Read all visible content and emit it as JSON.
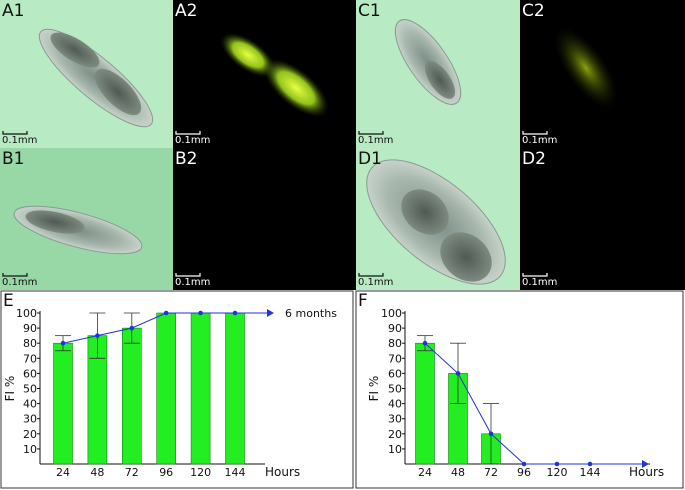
{
  "micrographs": [
    {
      "label": "A1",
      "scale": "0.1mm",
      "fluorescent": false
    },
    {
      "label": "A2",
      "scale": "0.1mm",
      "fluorescent": true
    },
    {
      "label": "C1",
      "scale": "0.1mm",
      "fluorescent": false
    },
    {
      "label": "C2",
      "scale": "0.1mm",
      "fluorescent": true
    },
    {
      "label": "B1",
      "scale": "0.1mm",
      "fluorescent": false
    },
    {
      "label": "B2",
      "scale": "0.1mm",
      "fluorescent": true
    },
    {
      "label": "D1",
      "scale": "0.1mm",
      "fluorescent": false
    },
    {
      "label": "D2",
      "scale": "0.1mm",
      "fluorescent": true
    }
  ],
  "colors": {
    "bar_fill": "#22ee22",
    "line": "#2233dd",
    "brightfield_light": "#b8eac3",
    "brightfield_dark": "#98d8a6",
    "fluorescence_bg": "#000000",
    "fluorescence_glow": "#c8ee30"
  },
  "chart_data": [
    {
      "panel": "E",
      "type": "bar",
      "categories": [
        "24",
        "48",
        "72",
        "96",
        "120",
        "144"
      ],
      "values": [
        80,
        85,
        90,
        100,
        100,
        100
      ],
      "error_low": [
        75,
        70,
        80,
        100,
        100,
        100
      ],
      "error_high": [
        85,
        100,
        100,
        100,
        100,
        100
      ],
      "ylabel": "FI %",
      "xlabel": "Hours",
      "yticks": [
        10,
        20,
        30,
        40,
        50,
        60,
        70,
        80,
        90,
        100
      ],
      "ylim": [
        0,
        100
      ],
      "annotation": "6 months",
      "grid": false
    },
    {
      "panel": "F",
      "type": "bar",
      "categories": [
        "24",
        "48",
        "72",
        "96",
        "120",
        "144"
      ],
      "values": [
        80,
        60,
        20,
        0,
        0,
        0
      ],
      "error_low": [
        75,
        40,
        0,
        0,
        0,
        0
      ],
      "error_high": [
        85,
        80,
        40,
        0,
        0,
        0
      ],
      "ylabel": "FI %",
      "xlabel": "Hours",
      "yticks": [
        10,
        20,
        30,
        40,
        50,
        60,
        70,
        80,
        90,
        100
      ],
      "ylim": [
        0,
        100
      ],
      "grid": false
    }
  ]
}
